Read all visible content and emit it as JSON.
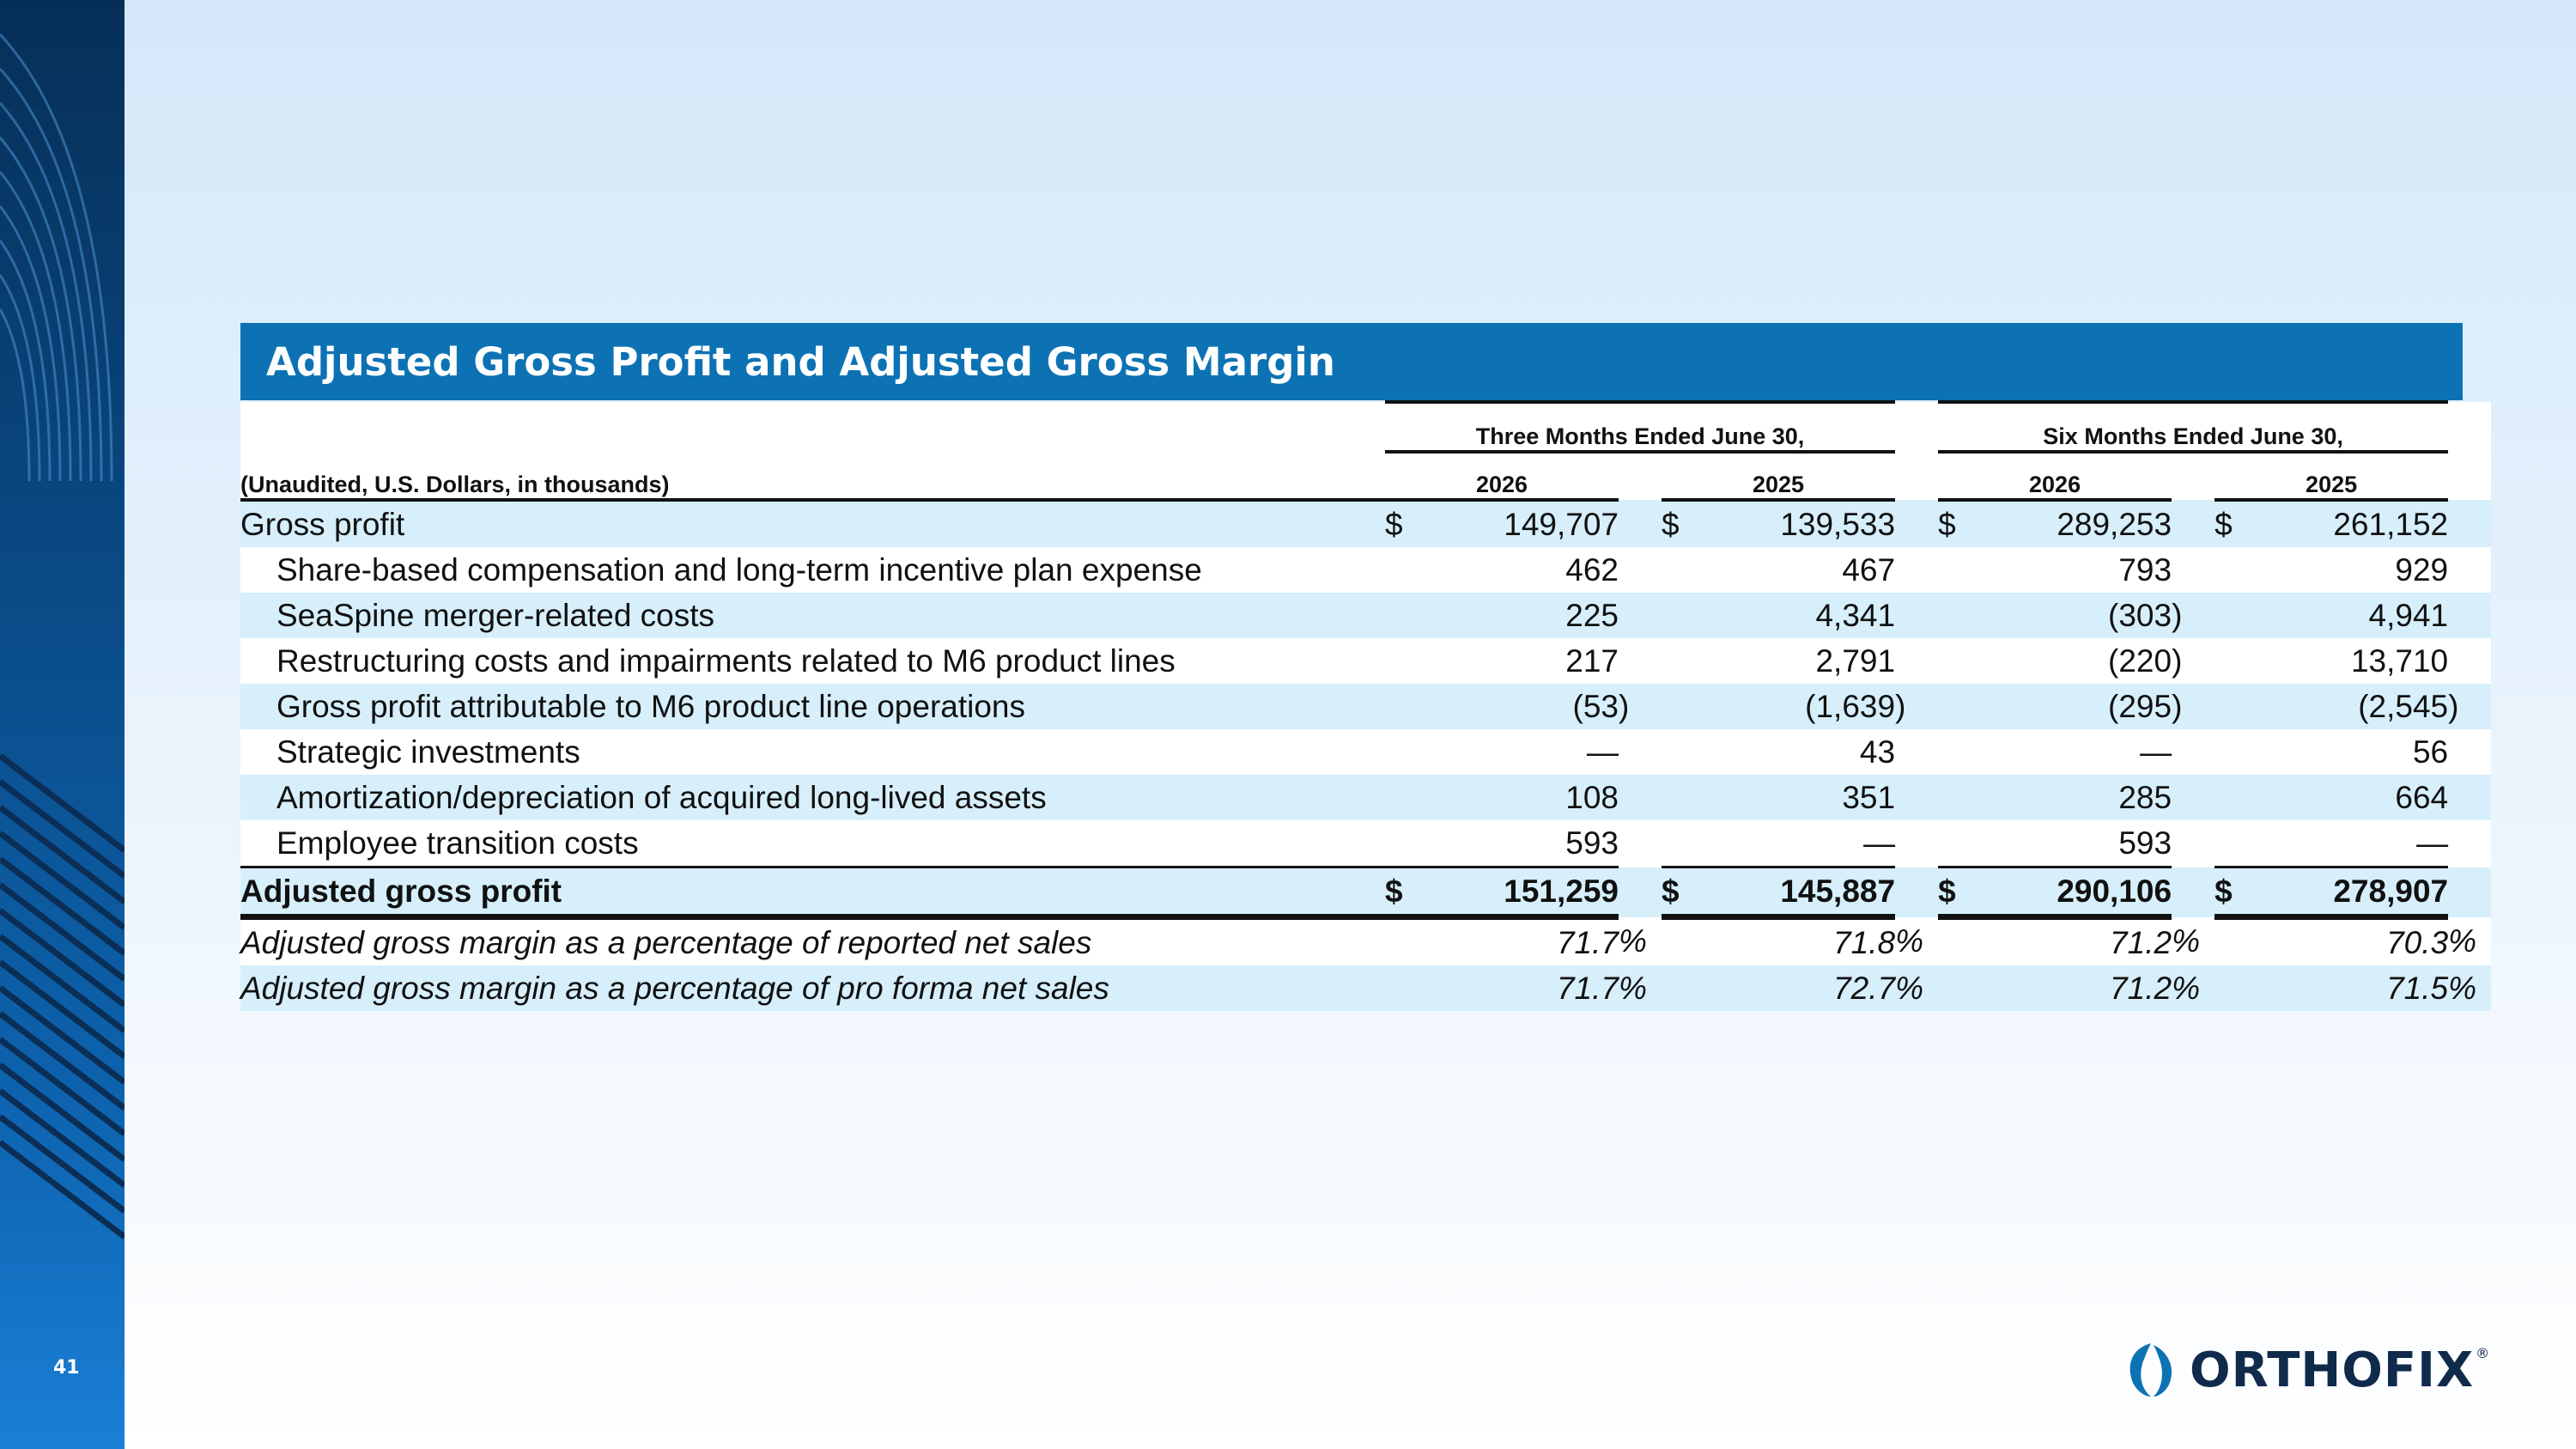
{
  "slide": {
    "page_number": "41",
    "title": "Adjusted Gross Profit and Adjusted Gross Margin",
    "logo_text": "ORTHOFIX",
    "logo_mark": "®"
  },
  "table": {
    "unit_label": "(Unaudited, U.S. Dollars, in thousands)",
    "periods": [
      "Three Months Ended June 30,",
      "Six Months Ended June 30,"
    ],
    "years": [
      "2026",
      "2025",
      "2026",
      "2025"
    ],
    "rows": [
      {
        "label": "Gross profit",
        "dollar": "$",
        "values": [
          "149,707",
          "139,533",
          "289,253",
          "261,152"
        ],
        "paren": [
          "",
          "",
          "",
          ""
        ]
      },
      {
        "label": "Share-based compensation and long-term incentive plan expense",
        "values": [
          "462",
          "467",
          "793",
          "929"
        ],
        "paren": [
          "",
          "",
          "",
          ""
        ]
      },
      {
        "label": "SeaSpine merger-related costs",
        "values": [
          "225",
          "4,341",
          "(303",
          "4,941"
        ],
        "paren": [
          "",
          "",
          ")",
          ""
        ]
      },
      {
        "label": "Restructuring costs and impairments related to M6 product lines",
        "values": [
          "217",
          "2,791",
          "(220",
          "13,710"
        ],
        "paren": [
          "",
          "",
          ")",
          ""
        ]
      },
      {
        "label": "Gross profit attributable to M6 product line operations",
        "values": [
          "(53",
          "(1,639",
          "(295",
          "(2,545"
        ],
        "paren": [
          ")",
          ")",
          ")",
          ")"
        ]
      },
      {
        "label": "Strategic investments",
        "values": [
          "—",
          "43",
          "—",
          "56"
        ],
        "paren": [
          "",
          "",
          "",
          ""
        ]
      },
      {
        "label": "Amortization/depreciation of acquired long-lived assets",
        "values": [
          "108",
          "351",
          "285",
          "664"
        ],
        "paren": [
          "",
          "",
          "",
          ""
        ]
      },
      {
        "label": "Employee transition costs",
        "values": [
          "593",
          "—",
          "593",
          "—"
        ],
        "paren": [
          "",
          "",
          "",
          ""
        ]
      }
    ],
    "total": {
      "label": "Adjusted gross profit",
      "dollar": "$",
      "values": [
        "151,259",
        "145,887",
        "290,106",
        "278,907"
      ]
    },
    "margins": [
      {
        "label": "Adjusted gross margin as a percentage of reported net sales",
        "values": [
          "71.7",
          "71.8",
          "71.2",
          "70.3"
        ],
        "suffix": "%"
      },
      {
        "label": "Adjusted gross margin as a percentage of pro forma net sales",
        "values": [
          "71.7",
          "72.7",
          "71.2",
          "71.5"
        ],
        "suffix": "%"
      }
    ]
  }
}
